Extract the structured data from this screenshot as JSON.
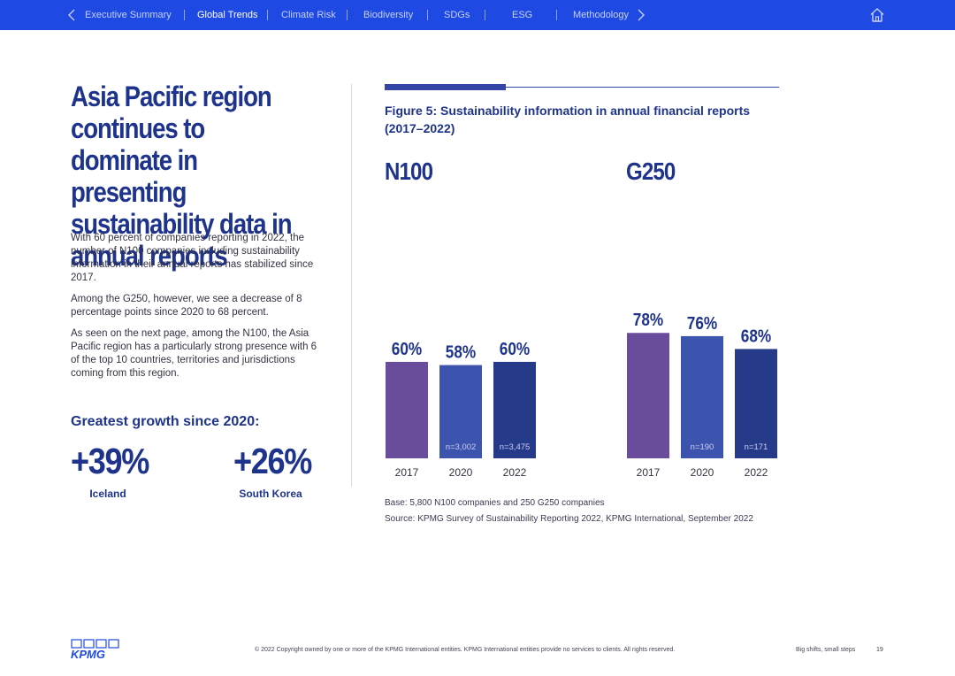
{
  "nav": {
    "items": [
      {
        "label": "Executive Summary",
        "active": false
      },
      {
        "label": "Global Trends",
        "active": true
      },
      {
        "label": "Climate Risk",
        "active": false
      },
      {
        "label": "Biodiversity",
        "active": false
      },
      {
        "label": "SDGs",
        "active": false
      },
      {
        "label": "ESG",
        "active": false
      },
      {
        "label": "Methodology",
        "active": false
      }
    ],
    "icons": {
      "prev": "chevron-left-icon",
      "next": "chevron-right-icon",
      "home": "home-icon"
    },
    "colors": {
      "bar": "#1e49e2",
      "active_text": "#ffffff",
      "inactive_text": "#c6d2ff"
    }
  },
  "headline": "Asia Pacific region continues to dominate in presenting sustainability data in annual reports",
  "paragraphs": [
    "With 60 percent of companies reporting in 2022, the number of N100 companies including sustainability information in their annual reports has stabilized since 2017.",
    "Among the G250, however, we see a decrease of 8 percentage points since 2020 to 68 percent.",
    "As seen on the next page, among the N100, the Asia Pacific region has a particularly strong presence with 6 of the top 10 countries, territories and jurisdictions coming from this region."
  ],
  "growth": {
    "title": "Greatest growth since 2020:",
    "items": [
      {
        "value": "+39%",
        "label": "Iceland"
      },
      {
        "value": "+26%",
        "label": "South Korea"
      }
    ]
  },
  "figure": {
    "title": "Figure 5: Sustainability information in annual financial reports (2017–2022)",
    "base": "Base: 5,800 N100 companies and 250 G250 companies",
    "source": "Source: KPMG Survey of Sustainability Reporting 2022, KPMG International, September 2022"
  },
  "chart_data": {
    "type": "bar",
    "ylim": [
      0,
      100
    ],
    "grid": false,
    "legend": "none",
    "colors": {
      "2017": "#6a4c9c",
      "2020": "#3c54ad",
      "2022": "#263a8a",
      "text": "#1e338b"
    },
    "groups": [
      {
        "title": "N100",
        "categories": [
          "2017",
          "2020",
          "2022"
        ],
        "values": [
          60,
          58,
          60
        ],
        "value_labels": [
          "60%",
          "58%",
          "60%"
        ],
        "n_labels": [
          "",
          "n=3,002",
          "n=3,475"
        ]
      },
      {
        "title": "G250",
        "categories": [
          "2017",
          "2020",
          "2022"
        ],
        "values": [
          78,
          76,
          68
        ],
        "value_labels": [
          "78%",
          "76%",
          "68%"
        ],
        "n_labels": [
          "",
          "n=190",
          "n=171"
        ]
      }
    ]
  },
  "footer": {
    "logo": "KPMG",
    "copyright": "© 2022 Copyright owned by one or more of the KPMG International entities. KPMG International entities provide no services to clients. All rights reserved.",
    "tagline": "Big shifts, small steps",
    "page": "19"
  }
}
